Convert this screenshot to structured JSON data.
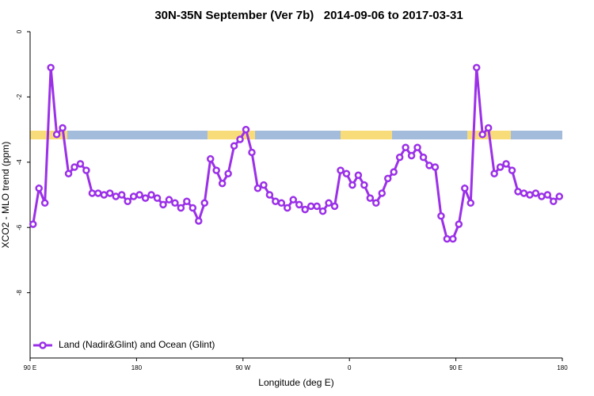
{
  "chart_data": {
    "type": "line",
    "title": "30N-35N September (Ver 7b)   2014-09-06 to 2017-03-31",
    "x_label": "Longitude (deg E)",
    "y_label": "XCO2 - MLO trend (ppm)",
    "xlim": [
      90,
      540
    ],
    "xticks": [
      {
        "value": 90,
        "label": "90 E"
      },
      {
        "value": 180,
        "label": "180"
      },
      {
        "value": 270,
        "label": "90 W"
      },
      {
        "value": 360,
        "label": "0"
      },
      {
        "value": 450,
        "label": "90 E"
      },
      {
        "value": 540,
        "label": "180"
      }
    ],
    "ylim": [
      -10,
      0
    ],
    "yticks": [
      0,
      -2,
      -4,
      -6,
      -8
    ],
    "legend": "bottom-left",
    "x": [
      92.5,
      97.5,
      102.5,
      107.5,
      112.5,
      117.5,
      122.5,
      127.5,
      132.5,
      137.5,
      142.5,
      147.5,
      152.5,
      157.5,
      162.5,
      167.5,
      172.5,
      177.5,
      182.5,
      187.5,
      192.5,
      197.5,
      202.5,
      207.5,
      212.5,
      217.5,
      222.5,
      227.5,
      232.5,
      237.5,
      242.5,
      247.5,
      252.5,
      257.5,
      262.5,
      267.5,
      272.5,
      277.5,
      282.5,
      287.5,
      292.5,
      297.5,
      302.5,
      307.5,
      312.5,
      317.5,
      322.5,
      327.5,
      332.5,
      337.5,
      342.5,
      347.5,
      352.5,
      357.5,
      362.5,
      367.5,
      372.5,
      377.5,
      382.5,
      387.5,
      392.5,
      397.5,
      402.5,
      407.5,
      412.5,
      417.5,
      422.5,
      427.5,
      432.5,
      437.5,
      442.5,
      447.5,
      452.5,
      457.5,
      462.5,
      467.5,
      472.5,
      477.5,
      482.5,
      487.5,
      492.5,
      497.5,
      502.5,
      507.5,
      512.5,
      517.5,
      522.5,
      527.5,
      532.5,
      537.5
    ],
    "series": [
      {
        "name": "Land (Nadir&Glint) and Ocean (Glint)",
        "color": "#9b30e8",
        "values": [
          -5.9,
          -4.8,
          -5.25,
          -1.1,
          -3.15,
          -2.95,
          -4.35,
          -4.15,
          -4.05,
          -4.25,
          -4.95,
          -4.95,
          -5.0,
          -4.95,
          -5.05,
          -5.0,
          -5.2,
          -5.05,
          -5.0,
          -5.1,
          -5.0,
          -5.1,
          -5.3,
          -5.15,
          -5.25,
          -5.4,
          -5.2,
          -5.4,
          -5.8,
          -5.25,
          -3.9,
          -4.25,
          -4.65,
          -4.35,
          -3.5,
          -3.3,
          -3.0,
          -3.7,
          -4.8,
          -4.7,
          -5.0,
          -5.2,
          -5.25,
          -5.4,
          -5.15,
          -5.3,
          -5.45,
          -5.35,
          -5.35,
          -5.5,
          -5.25,
          -5.35,
          -4.25,
          -4.35,
          -4.7,
          -4.4,
          -4.7,
          -5.1,
          -5.25,
          -4.95,
          -4.5,
          -4.3,
          -3.85,
          -3.55,
          -3.8,
          -3.55,
          -3.85,
          -4.1,
          -4.15,
          -5.65,
          -6.35,
          -6.35,
          -5.9,
          -4.8,
          -5.25,
          -1.1,
          -3.15,
          -2.95,
          -4.35,
          -4.15,
          -4.05,
          -4.25,
          -4.9,
          -4.95,
          -5.0,
          -4.95,
          -5.05,
          -5.0,
          -5.2,
          -5.05
        ]
      }
    ]
  }
}
